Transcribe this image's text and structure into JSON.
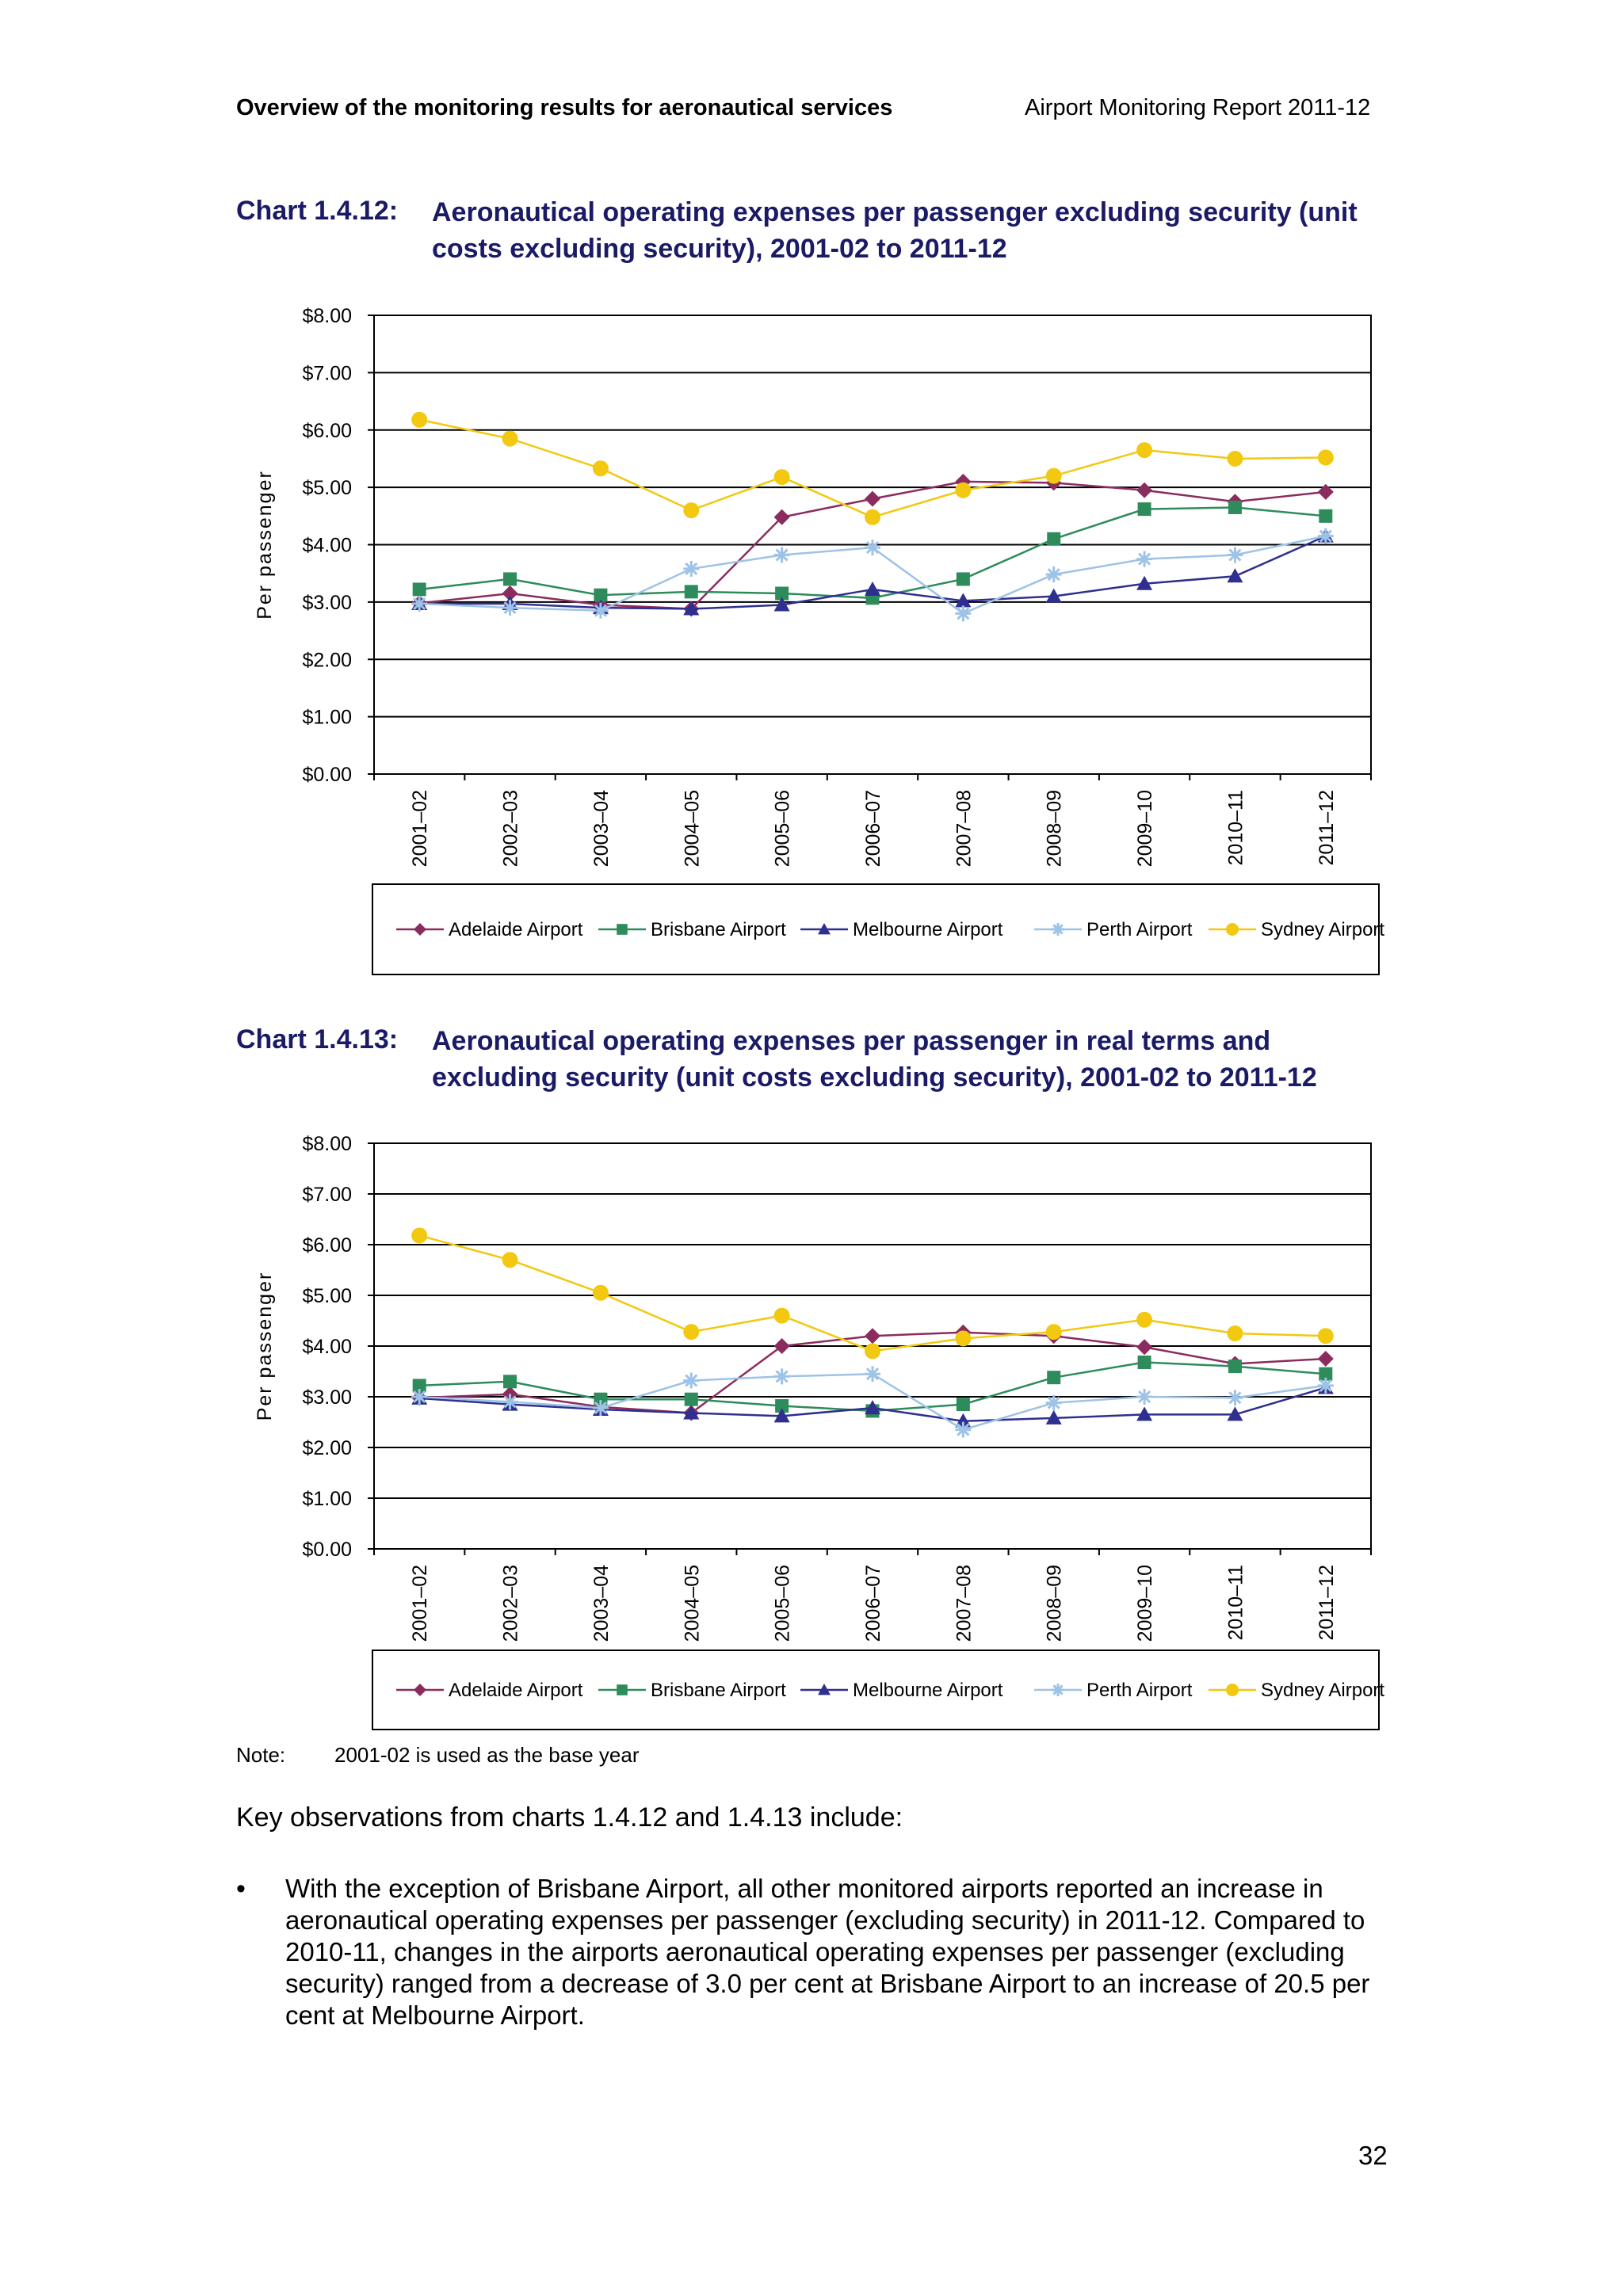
{
  "header": {
    "left": "Overview of the monitoring results for aeronautical services",
    "right": "Airport Monitoring Report 2011-12"
  },
  "charts": [
    {
      "number": "Chart 1.4.12:",
      "title": "Aeronautical operating expenses per passenger excluding security (unit costs excluding security), 2001-02 to 2011-12"
    },
    {
      "number": "Chart 1.4.13:",
      "title": "Aeronautical operating expenses per passenger in real terms and excluding security (unit costs excluding security), 2001-02 to 2011-12"
    }
  ],
  "chart_data": [
    {
      "type": "line",
      "ylabel": "Per passenger",
      "ylim": [
        0,
        8
      ],
      "yticks": [
        "$0.00",
        "$1.00",
        "$2.00",
        "$3.00",
        "$4.00",
        "$5.00",
        "$6.00",
        "$7.00",
        "$8.00"
      ],
      "grid": true,
      "legend_position": "bottom",
      "categories": [
        "2001–02",
        "2002–03",
        "2003–04",
        "2004–05",
        "2005–06",
        "2006–07",
        "2007–08",
        "2008–09",
        "2009–10",
        "2010–11",
        "2011–12"
      ],
      "series": [
        {
          "name": "Adelaide Airport",
          "color": "#8b2c5e",
          "marker": "diamond",
          "values": [
            2.98,
            3.15,
            2.95,
            2.88,
            4.48,
            4.8,
            5.1,
            5.08,
            4.95,
            4.75,
            4.92
          ]
        },
        {
          "name": "Brisbane Airport",
          "color": "#2e8b5c",
          "marker": "square",
          "values": [
            3.22,
            3.4,
            3.12,
            3.18,
            3.15,
            3.07,
            3.4,
            4.1,
            4.62,
            4.65,
            4.5
          ]
        },
        {
          "name": "Melbourne Airport",
          "color": "#2f2f8f",
          "marker": "triangle",
          "values": [
            2.97,
            2.97,
            2.9,
            2.88,
            2.95,
            3.22,
            3.02,
            3.1,
            3.32,
            3.45,
            4.15
          ]
        },
        {
          "name": "Perth Airport",
          "color": "#9dc3e6",
          "marker": "star",
          "values": [
            2.97,
            2.9,
            2.85,
            3.58,
            3.82,
            3.95,
            2.8,
            3.48,
            3.75,
            3.82,
            4.15
          ]
        },
        {
          "name": "Sydney Airport",
          "color": "#f2c811",
          "marker": "circle",
          "values": [
            6.18,
            5.85,
            5.33,
            4.6,
            5.18,
            4.48,
            4.95,
            5.2,
            5.65,
            5.5,
            5.52
          ]
        }
      ]
    },
    {
      "type": "line",
      "ylabel": "Per passenger",
      "ylim": [
        0,
        8
      ],
      "yticks": [
        "$0.00",
        "$1.00",
        "$2.00",
        "$3.00",
        "$4.00",
        "$5.00",
        "$6.00",
        "$7.00",
        "$8.00"
      ],
      "grid": true,
      "legend_position": "bottom",
      "categories": [
        "2001–02",
        "2002–03",
        "2003–04",
        "2004–05",
        "2005–06",
        "2006–07",
        "2007–08",
        "2008–09",
        "2009–10",
        "2010–11",
        "2011–12"
      ],
      "series": [
        {
          "name": "Adelaide Airport",
          "color": "#8b2c5e",
          "marker": "diamond",
          "values": [
            2.98,
            3.05,
            2.8,
            2.68,
            4.0,
            4.2,
            4.27,
            4.2,
            3.98,
            3.65,
            3.75
          ]
        },
        {
          "name": "Brisbane Airport",
          "color": "#2e8b5c",
          "marker": "square",
          "values": [
            3.22,
            3.3,
            2.95,
            2.95,
            2.82,
            2.72,
            2.85,
            3.38,
            3.68,
            3.6,
            3.45
          ]
        },
        {
          "name": "Melbourne Airport",
          "color": "#2f2f8f",
          "marker": "triangle",
          "values": [
            2.97,
            2.85,
            2.75,
            2.68,
            2.62,
            2.78,
            2.52,
            2.58,
            2.65,
            2.65,
            3.18
          ]
        },
        {
          "name": "Perth Airport",
          "color": "#9dc3e6",
          "marker": "star",
          "values": [
            3.0,
            2.9,
            2.78,
            3.32,
            3.4,
            3.45,
            2.35,
            2.88,
            3.0,
            2.98,
            3.22
          ]
        },
        {
          "name": "Sydney Airport",
          "color": "#f2c811",
          "marker": "circle",
          "values": [
            6.18,
            5.7,
            5.05,
            4.28,
            4.6,
            3.9,
            4.15,
            4.28,
            4.52,
            4.25,
            4.2
          ]
        }
      ]
    }
  ],
  "note": {
    "label": "Note:",
    "text": "2001-02 is used as the base year"
  },
  "body": {
    "intro": "Key observations from charts 1.4.12 and 1.4.13 include:",
    "bullet_symbol": "•",
    "bullet": "With the exception of Brisbane Airport, all other monitored airports reported an increase in aeronautical operating expenses per passenger (excluding security) in 2011-12. Compared to 2010-11, changes in the airports aeronautical operating expenses per passenger (excluding security) ranged from a decrease of 3.0 per cent at Brisbane Airport to an increase of 20.5 per cent at Melbourne Airport."
  },
  "page_number": "32"
}
